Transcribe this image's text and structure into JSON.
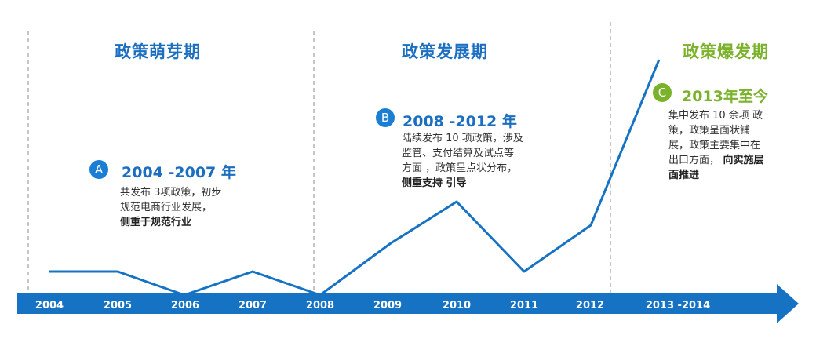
{
  "phases": [
    {
      "title": "政策萌芽期",
      "color": "#1c6fc0"
    },
    {
      "title": "政策发展期",
      "color": "#1c6fc0"
    },
    {
      "title": "政策爆发期",
      "color": "#7bb22b"
    }
  ],
  "stages": [
    {
      "badge": "A",
      "badge_color": "#1a7fd4",
      "title": "2004 -2007 年",
      "title_color": "#1c6fc0",
      "desc_lines": [
        "共发布 3项政策，初步",
        "规范电商行业发展，"
      ],
      "desc_bold": "侧重于规范行业"
    },
    {
      "badge": "B",
      "badge_color": "#1a7fd4",
      "title": "2008 -2012 年",
      "title_color": "#1c6fc0",
      "desc_lines": [
        "陆续发布  10 项政策，涉及",
        "监管、支付结算及试点等",
        "方面 ，政策呈点状分布，"
      ],
      "desc_bold": "侧重支持  引导"
    },
    {
      "badge": "C",
      "badge_color": "#7bb22b",
      "title": "2013年至今",
      "title_color": "#7bb22b",
      "desc_lines": [
        "集中发布   10 余项 政",
        "策，政策呈面状铺",
        "展，政策主要集中在",
        "出口方面，"
      ],
      "desc_bold_inline": "   向实施层",
      "desc_bold": "面推进"
    }
  ],
  "axis_labels": [
    "2004",
    "2005",
    "2006",
    "2007",
    "2008",
    "2009",
    "2010",
    "2011",
    "2012",
    "2013  -2014"
  ],
  "colors": {
    "arrow": "#1673c4",
    "line": "#1673c4",
    "divider": "#a0a0a0",
    "axis_text": "#ffffff"
  }
}
